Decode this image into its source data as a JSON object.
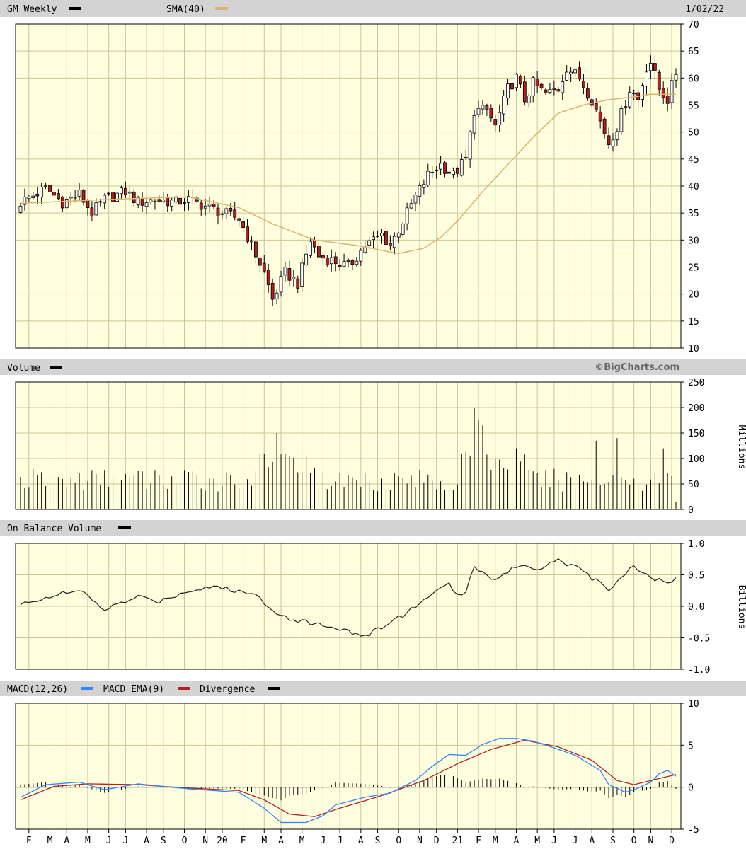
{
  "header": {
    "symbol_label": "GM Weekly",
    "sma_label": "SMA(40)",
    "date": "1/02/22"
  },
  "volume_header": {
    "label": "Volume",
    "brand": "©BigCharts.com",
    "unit": "Millions"
  },
  "obv_header": {
    "label": "On Balance Volume",
    "unit": "Billions"
  },
  "macd_header": {
    "macd_label": "MACD(12,26)",
    "ema_label": "MACD EMA(9)",
    "div_label": "Divergence"
  },
  "colors": {
    "panel_bg": "#ffffe0",
    "grid": "#c8c896",
    "header_bg": "#d3d3d3",
    "up": "#000000",
    "down": "#b81c1c",
    "sma": "#e2b170",
    "macd": "#3385ff",
    "ema": "#b22222"
  },
  "chart_data": [
    {
      "type": "candlestick",
      "title": "GM Weekly",
      "y_ticks": [
        "70",
        "65",
        "60",
        "55",
        "50",
        "45",
        "40",
        "35",
        "30",
        "25",
        "20",
        "15",
        "10"
      ],
      "ylim": [
        10,
        70
      ],
      "x_months": [
        "F",
        "M",
        "A",
        "M",
        "J",
        "J",
        "A",
        "S",
        "O",
        "N",
        "20",
        "F",
        "M",
        "A",
        "M",
        "J",
        "J",
        "A",
        "S",
        "O",
        "N",
        "D",
        "21",
        "F",
        "M",
        "A",
        "M",
        "J",
        "J",
        "A",
        "S",
        "O",
        "N",
        "D"
      ],
      "close_anchors": [
        [
          0,
          37
        ],
        [
          6,
          39.5
        ],
        [
          10,
          37
        ],
        [
          14,
          38.5
        ],
        [
          17,
          35
        ],
        [
          20,
          37.5
        ],
        [
          25,
          39
        ],
        [
          28,
          37
        ],
        [
          32,
          37.5
        ],
        [
          37,
          37
        ],
        [
          40,
          37.5
        ],
        [
          45,
          36
        ],
        [
          48,
          35
        ],
        [
          52,
          34
        ],
        [
          55,
          29
        ],
        [
          58,
          24
        ],
        [
          60,
          19
        ],
        [
          63,
          24
        ],
        [
          66,
          22
        ],
        [
          69,
          30
        ],
        [
          71,
          27
        ],
        [
          75,
          26
        ],
        [
          78,
          25
        ],
        [
          82,
          29
        ],
        [
          86,
          31
        ],
        [
          88,
          29
        ],
        [
          92,
          35
        ],
        [
          94,
          38
        ],
        [
          97,
          42
        ],
        [
          100,
          44
        ],
        [
          103,
          42
        ],
        [
          106,
          45
        ],
        [
          108,
          54
        ],
        [
          111,
          54
        ],
        [
          113,
          51
        ],
        [
          116,
          58
        ],
        [
          118,
          60
        ],
        [
          120,
          56
        ],
        [
          122,
          59
        ],
        [
          125,
          57
        ],
        [
          128,
          58
        ],
        [
          130,
          62
        ],
        [
          133,
          60
        ],
        [
          136,
          56
        ],
        [
          138,
          52
        ],
        [
          140,
          48
        ],
        [
          142,
          51
        ],
        [
          145,
          58
        ],
        [
          147,
          56
        ],
        [
          149,
          62
        ],
        [
          150,
          63
        ],
        [
          152,
          58
        ],
        [
          154,
          56
        ],
        [
          156,
          61
        ]
      ],
      "sma_anchors": [
        [
          0,
          36.8
        ],
        [
          20,
          37.5
        ],
        [
          40,
          38
        ],
        [
          52,
          36
        ],
        [
          60,
          33
        ],
        [
          70,
          30
        ],
        [
          80,
          29
        ],
        [
          90,
          27.5
        ],
        [
          96,
          28.5
        ],
        [
          100,
          30.5
        ],
        [
          104,
          33.5
        ],
        [
          110,
          39
        ],
        [
          116,
          44
        ],
        [
          122,
          49
        ],
        [
          128,
          53.5
        ],
        [
          134,
          55
        ],
        [
          140,
          56
        ],
        [
          146,
          56.5
        ],
        [
          150,
          57
        ],
        [
          156,
          57
        ]
      ]
    },
    {
      "type": "bar",
      "title": "Volume",
      "unit": "Millions",
      "y_ticks": [
        "250",
        "200",
        "150",
        "100",
        "50",
        "0"
      ],
      "ylim": [
        0,
        250
      ],
      "volume_spikes": [
        [
          61,
          150
        ],
        [
          62,
          108
        ],
        [
          108,
          200
        ],
        [
          109,
          175
        ],
        [
          110,
          165
        ],
        [
          118,
          120
        ],
        [
          137,
          135
        ],
        [
          142,
          140
        ],
        [
          153,
          120
        ]
      ]
    },
    {
      "type": "line",
      "title": "On Balance Volume",
      "unit": "Billions",
      "y_ticks": [
        "1.0",
        "0.5",
        "0.0",
        "-0.5",
        "-1.0"
      ],
      "ylim": [
        -1.0,
        1.0
      ],
      "obv_anchors": [
        [
          0,
          0.02
        ],
        [
          6,
          0.15
        ],
        [
          14,
          0.25
        ],
        [
          20,
          -0.05
        ],
        [
          28,
          0.15
        ],
        [
          33,
          0.08
        ],
        [
          40,
          0.25
        ],
        [
          46,
          0.32
        ],
        [
          56,
          0.18
        ],
        [
          62,
          -0.15
        ],
        [
          68,
          -0.25
        ],
        [
          76,
          -0.35
        ],
        [
          82,
          -0.48
        ],
        [
          88,
          -0.25
        ],
        [
          92,
          -0.1
        ],
        [
          98,
          0.2
        ],
        [
          102,
          0.35
        ],
        [
          104,
          0.15
        ],
        [
          106,
          0.25
        ],
        [
          108,
          0.65
        ],
        [
          110,
          0.55
        ],
        [
          112,
          0.4
        ],
        [
          118,
          0.65
        ],
        [
          123,
          0.6
        ],
        [
          128,
          0.75
        ],
        [
          134,
          0.55
        ],
        [
          138,
          0.35
        ],
        [
          140,
          0.28
        ],
        [
          146,
          0.65
        ],
        [
          150,
          0.45
        ],
        [
          154,
          0.38
        ],
        [
          156,
          0.42
        ]
      ]
    },
    {
      "type": "line",
      "title": "MACD",
      "y_ticks": [
        "10",
        "5",
        "0",
        "-5"
      ],
      "ylim": [
        -5,
        10
      ],
      "macd_anchors": [
        [
          0,
          -1.2
        ],
        [
          6,
          0.3
        ],
        [
          14,
          0.6
        ],
        [
          20,
          -0.3
        ],
        [
          28,
          0.4
        ],
        [
          40,
          -0.2
        ],
        [
          52,
          -0.6
        ],
        [
          58,
          -2.5
        ],
        [
          62,
          -4.2
        ],
        [
          68,
          -4.2
        ],
        [
          72,
          -3.4
        ],
        [
          75,
          -2.1
        ],
        [
          82,
          -1.2
        ],
        [
          88,
          -0.7
        ],
        [
          94,
          0.8
        ],
        [
          98,
          2.5
        ],
        [
          102,
          3.9
        ],
        [
          106,
          3.8
        ],
        [
          110,
          5.1
        ],
        [
          114,
          5.8
        ],
        [
          118,
          5.8
        ],
        [
          122,
          5.5
        ],
        [
          128,
          4.5
        ],
        [
          132,
          3.8
        ],
        [
          138,
          2.0
        ],
        [
          140,
          0.3
        ],
        [
          144,
          -0.6
        ],
        [
          146,
          -0.3
        ],
        [
          150,
          0.6
        ],
        [
          152,
          1.6
        ],
        [
          154,
          2.0
        ],
        [
          156,
          1.3
        ]
      ],
      "ema_anchors": [
        [
          0,
          -1.5
        ],
        [
          8,
          0.1
        ],
        [
          16,
          0.4
        ],
        [
          28,
          0.3
        ],
        [
          40,
          -0.1
        ],
        [
          52,
          -0.4
        ],
        [
          58,
          -1.5
        ],
        [
          64,
          -3.2
        ],
        [
          70,
          -3.5
        ],
        [
          76,
          -2.5
        ],
        [
          86,
          -1.0
        ],
        [
          96,
          0.8
        ],
        [
          104,
          2.8
        ],
        [
          112,
          4.5
        ],
        [
          120,
          5.6
        ],
        [
          128,
          4.8
        ],
        [
          136,
          3.2
        ],
        [
          142,
          0.8
        ],
        [
          146,
          0.3
        ],
        [
          150,
          0.8
        ],
        [
          156,
          1.5
        ]
      ]
    }
  ]
}
